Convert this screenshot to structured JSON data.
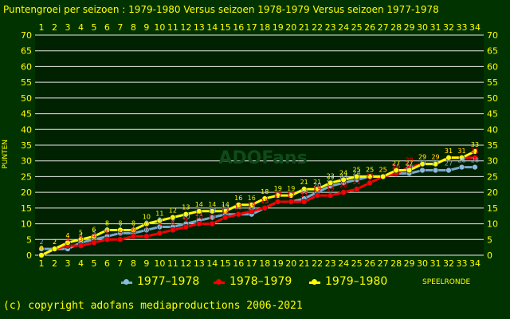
{
  "title": "Puntengroei per seizoen : 1979-1980 Versus seizoen 1978-1979 Versus seizoen 1977-1978",
  "copyright": "(c) copyright adofans mediaproductions 2006-2021",
  "watermark": "ADOFans",
  "colors": {
    "background": "#003300",
    "plot_background": "#002200",
    "grid": "#e8e8e8",
    "text": "#ffff00"
  },
  "chart_data": {
    "type": "line",
    "xlabel": "SPEELRONDE",
    "ylabel": "PUNTEN",
    "xlim": [
      1,
      34
    ],
    "ylim": [
      0,
      70
    ],
    "y_ticks": [
      0,
      5,
      10,
      15,
      20,
      25,
      30,
      35,
      40,
      45,
      50,
      55,
      60,
      65,
      70
    ],
    "x": [
      1,
      2,
      3,
      4,
      5,
      6,
      7,
      8,
      9,
      10,
      11,
      12,
      13,
      14,
      15,
      16,
      17,
      18,
      19,
      20,
      21,
      22,
      23,
      24,
      25,
      26,
      27,
      28,
      29,
      30,
      31,
      32,
      33,
      34
    ],
    "grid": true,
    "legend_position": "bottom",
    "series": [
      {
        "name": "1977–1978",
        "color": "#77aacc",
        "marker": "#88bbdd",
        "values": [
          2,
          2,
          2,
          4,
          5,
          6,
          7,
          7,
          8,
          9,
          9,
          10,
          11,
          12,
          13,
          13,
          13,
          15,
          17,
          17,
          18,
          20,
          22,
          23,
          24,
          25,
          25,
          26,
          26,
          27,
          27,
          27,
          28,
          28
        ]
      },
      {
        "name": "1978–1979",
        "color": "#ff0000",
        "marker": "#ff0000",
        "values": [
          0,
          2,
          3,
          3,
          4,
          5,
          5,
          6,
          6,
          7,
          8,
          9,
          10,
          10,
          12,
          13,
          14,
          15,
          17,
          17,
          17,
          19,
          19,
          20,
          21,
          23,
          25,
          26,
          28,
          29,
          29,
          31,
          31,
          31
        ]
      },
      {
        "name": "1979–1980",
        "color": "#ffff00",
        "marker": "#ffff00",
        "values": [
          0,
          2,
          4,
          5,
          6,
          8,
          8,
          8,
          10,
          11,
          12,
          13,
          14,
          14,
          14,
          16,
          16,
          18,
          19,
          19,
          21,
          21,
          23,
          24,
          25,
          25,
          25,
          27,
          27,
          29,
          29,
          31,
          31,
          33
        ]
      }
    ]
  }
}
